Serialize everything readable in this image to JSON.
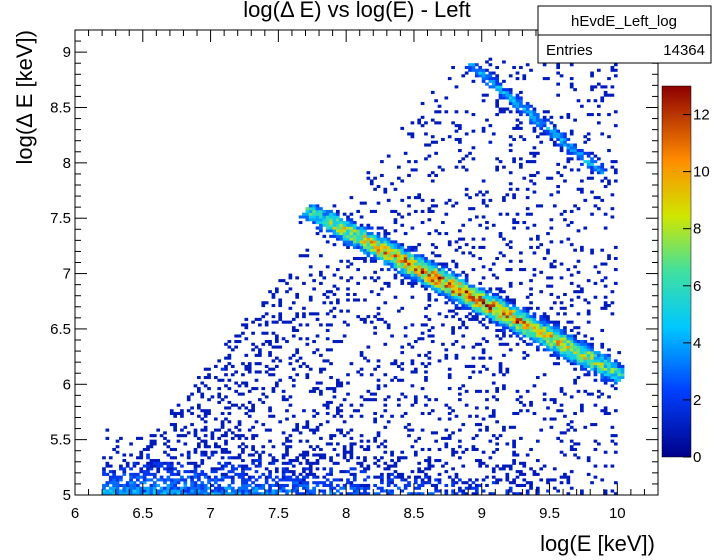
{
  "chart_data": {
    "type": "heatmap",
    "title": "log(Δ E) vs log(E) - Left",
    "xlabel": "log(E [keV])",
    "ylabel": "log(Δ E [keV])",
    "xlim": [
      6,
      10.3
    ],
    "ylim": [
      5,
      9.2
    ],
    "x_ticks": [
      "6",
      "6.5",
      "7",
      "7.5",
      "8",
      "8.5",
      "9",
      "9.5",
      "10"
    ],
    "y_ticks": [
      "5",
      "5.5",
      "6",
      "6.5",
      "7",
      "7.5",
      "8",
      "8.5",
      "9"
    ],
    "colorbar": {
      "min": 0,
      "max": 13,
      "ticks": [
        "0",
        "2",
        "4",
        "6",
        "8",
        "10",
        "12"
      ]
    },
    "stats": {
      "name": "hEvdE_Left_log",
      "entries_label": "Entries",
      "entries_value": "14364"
    },
    "features": [
      {
        "name": "main band",
        "from": [
          7.75,
          7.55
        ],
        "to": [
          10.0,
          6.1
        ],
        "peak_count": 12
      },
      {
        "name": "upper band",
        "from": [
          8.9,
          8.9
        ],
        "to": [
          9.9,
          7.9
        ],
        "peak_count": 4
      },
      {
        "name": "low-energy cluster",
        "x_range": [
          6.2,
          9.5
        ],
        "y_range": [
          5.0,
          5.6
        ],
        "peak_count": 8
      }
    ]
  }
}
